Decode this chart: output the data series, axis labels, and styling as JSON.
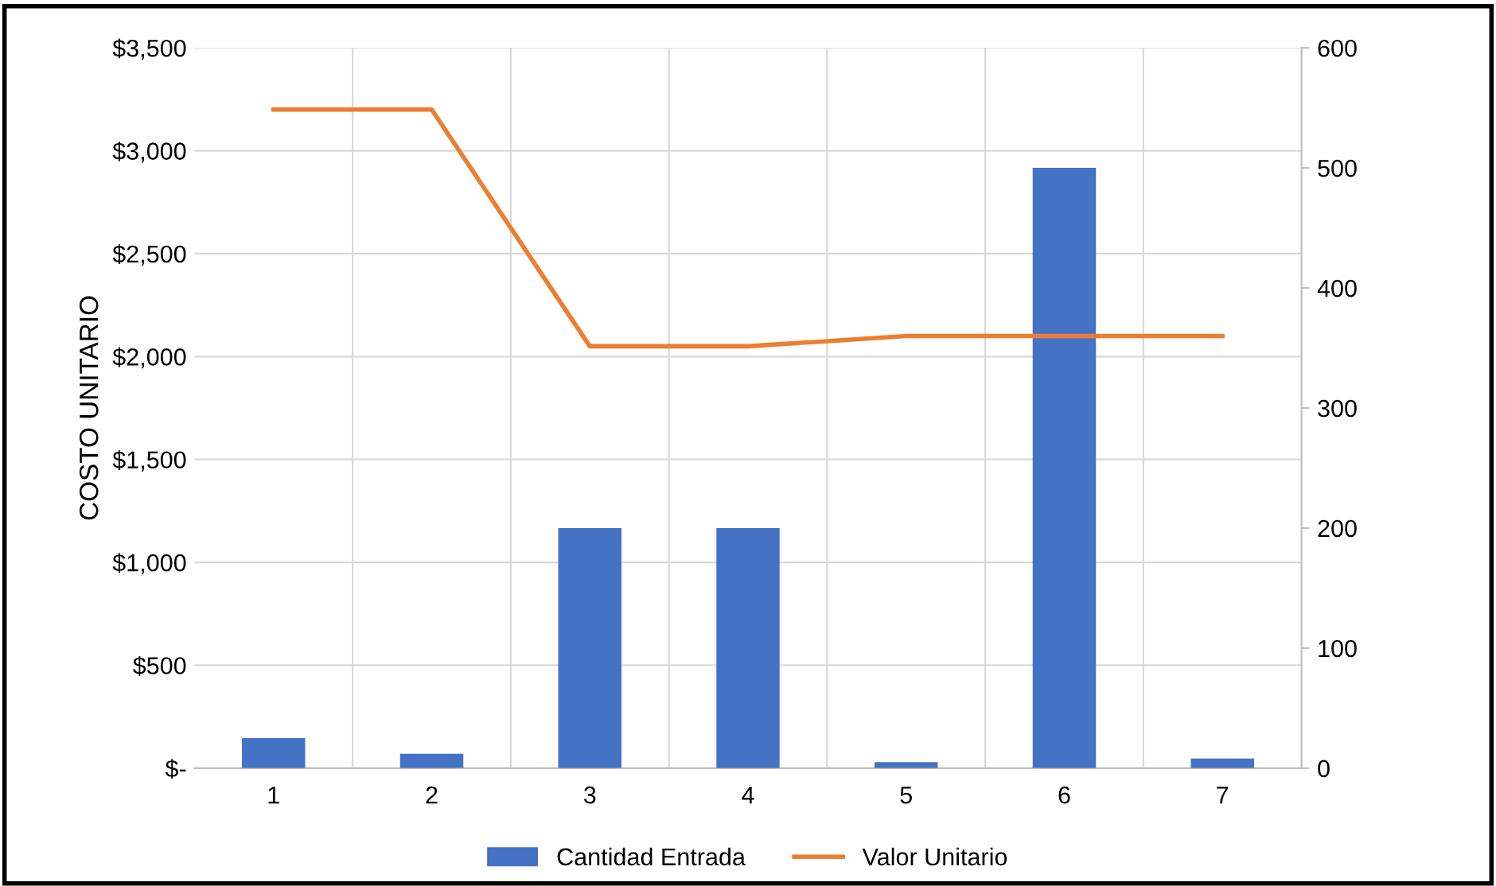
{
  "chart_data": {
    "type": "bar",
    "ylabel": "COSTO UNITARIO",
    "categories": [
      "1",
      "2",
      "3",
      "4",
      "5",
      "6",
      "7"
    ],
    "series": [
      {
        "name": "Cantidad Entrada",
        "axis": "y2",
        "color": "#4472c4",
        "values": [
          25,
          12,
          200,
          200,
          5,
          500,
          8
        ]
      },
      {
        "name": "Valor Unitario",
        "type": "line",
        "axis": "y",
        "color": "#ed7d31",
        "values": [
          3200,
          3200,
          2050,
          2050,
          2100,
          2100,
          2100
        ]
      }
    ],
    "ylim": [
      0,
      3500
    ],
    "yticks": [
      {
        "value": 0,
        "label": "$-"
      },
      {
        "value": 500,
        "label": "$500"
      },
      {
        "value": 1000,
        "label": "$1,000"
      },
      {
        "value": 1500,
        "label": "$1,500"
      },
      {
        "value": 2000,
        "label": "$2,000"
      },
      {
        "value": 2500,
        "label": "$2,500"
      },
      {
        "value": 3000,
        "label": "$3,000"
      },
      {
        "value": 3500,
        "label": "$3,500"
      }
    ],
    "y2lim": [
      0,
      600
    ],
    "y2ticks": [
      0,
      100,
      200,
      300,
      400,
      500,
      600
    ],
    "grid": true,
    "legend": "bottom"
  }
}
